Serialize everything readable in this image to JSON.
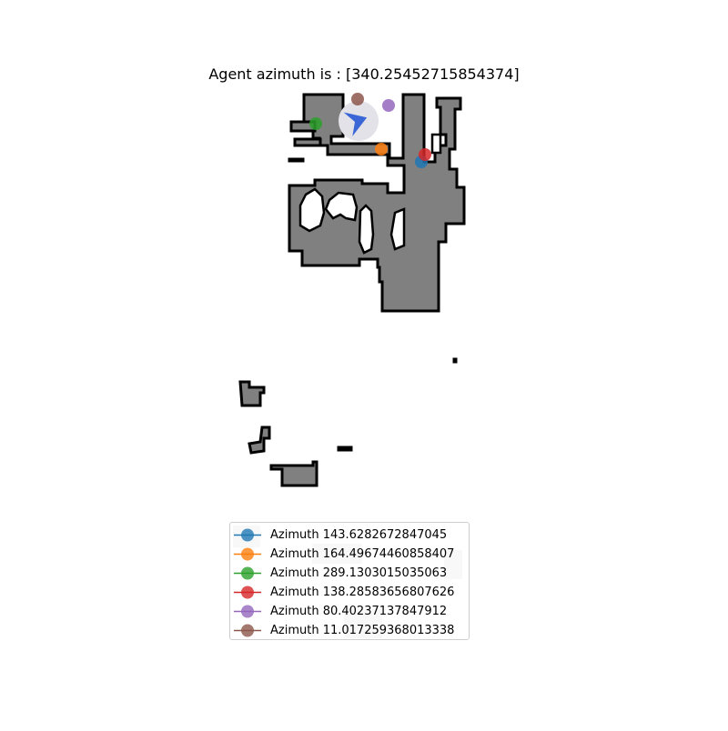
{
  "title": "Agent azimuth is : [340.25452715854374]",
  "agent": {
    "azimuth": 340.25452715854374,
    "marker_color": "#3b66d6",
    "halo_color": "#e2e2e8"
  },
  "map_colors": {
    "free": "#808080",
    "wall": "#000000",
    "background": "#ffffff",
    "faint": "#d9d9d9"
  },
  "markers": [
    {
      "label": "Azimuth 143.6282672847045",
      "azimuth": 143.6282672847045,
      "color": "#1f77b4"
    },
    {
      "label": "Azimuth 164.49674460858407",
      "azimuth": 164.49674460858407,
      "color": "#ff7f0e"
    },
    {
      "label": "Azimuth 289.1303015035063",
      "azimuth": 289.1303015035063,
      "color": "#2ca02c"
    },
    {
      "label": "Azimuth 138.28583656807626",
      "azimuth": 138.28583656807626,
      "color": "#d62728"
    },
    {
      "label": "Azimuth 80.40237137847912",
      "azimuth": 80.40237137847912,
      "color": "#9467bd"
    },
    {
      "label": "Azimuth 11.017259368013338",
      "azimuth": 11.017259368013338,
      "color": "#8c564b"
    }
  ]
}
